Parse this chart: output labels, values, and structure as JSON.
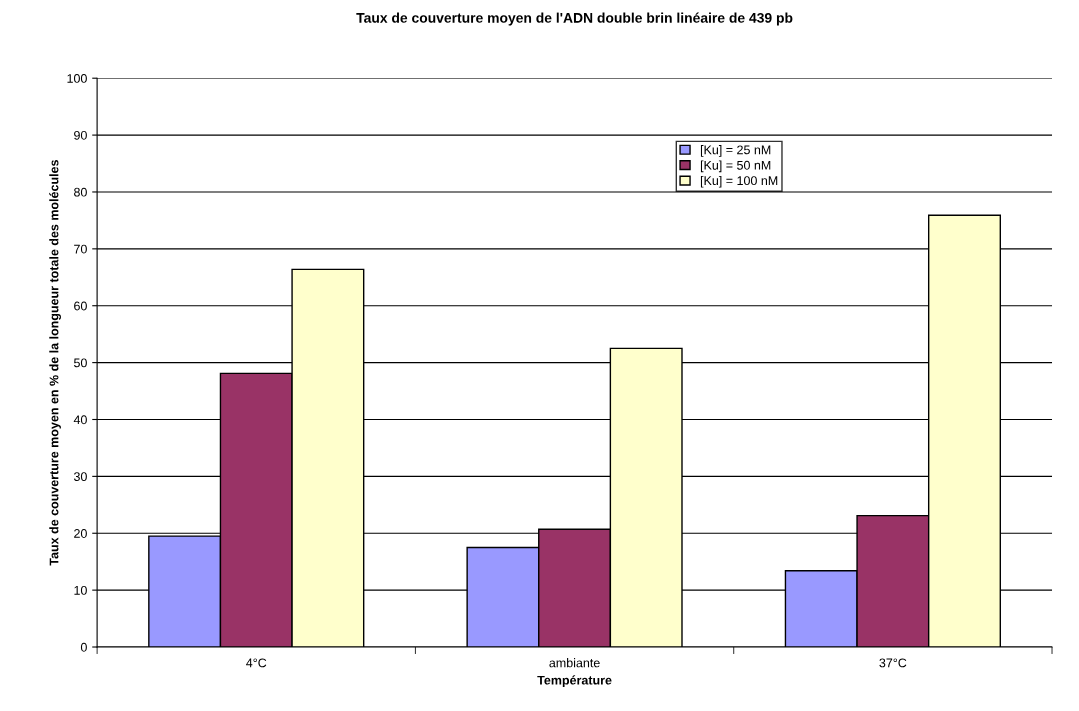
{
  "chart_data": {
    "type": "bar",
    "title": "Taux de couverture moyen de l'ADN double brin linéaire de 439 pb",
    "xlabel": "Température",
    "ylabel": "Taux de couverture moyen en % de la longueur totale des molécules",
    "categories": [
      "4°C",
      "ambiante",
      "37°C"
    ],
    "series": [
      {
        "name": "[Ku] = 25 nM",
        "color": "#9999ff",
        "values": [
          19.5,
          17.5,
          13.4
        ]
      },
      {
        "name": "[Ku] = 50 nM",
        "color": "#993366",
        "values": [
          48.1,
          20.7,
          23.1
        ]
      },
      {
        "name": "[Ku] = 100 nM",
        "color": "#ffffcc",
        "values": [
          66.4,
          52.5,
          75.9
        ]
      }
    ],
    "ylim": [
      0,
      100
    ],
    "yticks": [
      0,
      10,
      20,
      30,
      40,
      50,
      60,
      70,
      80,
      90,
      100
    ],
    "grid": "y",
    "legend": "top right"
  }
}
